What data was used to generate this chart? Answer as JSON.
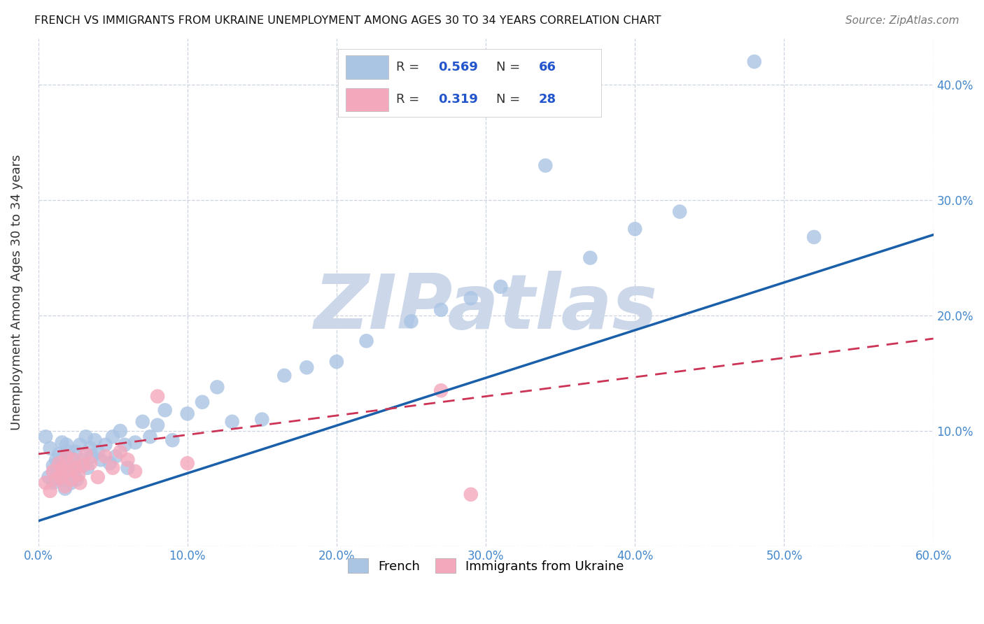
{
  "title": "FRENCH VS IMMIGRANTS FROM UKRAINE UNEMPLOYMENT AMONG AGES 30 TO 34 YEARS CORRELATION CHART",
  "source": "Source: ZipAtlas.com",
  "ylabel": "Unemployment Among Ages 30 to 34 years",
  "xlim": [
    0.0,
    0.6
  ],
  "ylim": [
    0.0,
    0.44
  ],
  "xticks": [
    0.0,
    0.1,
    0.2,
    0.3,
    0.4,
    0.5,
    0.6
  ],
  "yticks": [
    0.0,
    0.1,
    0.2,
    0.3,
    0.4
  ],
  "french_R": 0.569,
  "french_N": 66,
  "ukraine_R": 0.319,
  "ukraine_N": 28,
  "french_color": "#aac4e4",
  "ukraine_color": "#f4a8bc",
  "french_line_color": "#1a5faa",
  "ukraine_line_color": "#cc3355",
  "tick_color": "#4488cc",
  "watermark": "ZIPatlas",
  "watermark_color": "#ccd8ea",
  "french_x": [
    0.005,
    0.007,
    0.008,
    0.01,
    0.01,
    0.012,
    0.013,
    0.014,
    0.015,
    0.015,
    0.016,
    0.017,
    0.018,
    0.018,
    0.019,
    0.02,
    0.02,
    0.021,
    0.022,
    0.022,
    0.023,
    0.024,
    0.025,
    0.026,
    0.027,
    0.028,
    0.03,
    0.032,
    0.033,
    0.035,
    0.036,
    0.038,
    0.04,
    0.042,
    0.045,
    0.048,
    0.05,
    0.052,
    0.055,
    0.058,
    0.06,
    0.065,
    0.07,
    0.075,
    0.08,
    0.085,
    0.09,
    0.1,
    0.11,
    0.12,
    0.13,
    0.15,
    0.165,
    0.18,
    0.2,
    0.22,
    0.25,
    0.27,
    0.29,
    0.31,
    0.34,
    0.37,
    0.4,
    0.43,
    0.48,
    0.52
  ],
  "french_y": [
    0.095,
    0.06,
    0.085,
    0.07,
    0.055,
    0.075,
    0.068,
    0.08,
    0.058,
    0.072,
    0.09,
    0.065,
    0.078,
    0.05,
    0.088,
    0.062,
    0.082,
    0.073,
    0.068,
    0.055,
    0.076,
    0.065,
    0.082,
    0.058,
    0.07,
    0.088,
    0.075,
    0.095,
    0.068,
    0.085,
    0.078,
    0.092,
    0.082,
    0.075,
    0.088,
    0.072,
    0.095,
    0.078,
    0.1,
    0.088,
    0.068,
    0.09,
    0.108,
    0.095,
    0.105,
    0.118,
    0.092,
    0.115,
    0.125,
    0.138,
    0.108,
    0.11,
    0.148,
    0.155,
    0.16,
    0.178,
    0.195,
    0.205,
    0.215,
    0.225,
    0.33,
    0.25,
    0.275,
    0.29,
    0.42,
    0.268
  ],
  "ukraine_x": [
    0.005,
    0.008,
    0.01,
    0.012,
    0.014,
    0.015,
    0.016,
    0.018,
    0.019,
    0.02,
    0.022,
    0.024,
    0.025,
    0.027,
    0.028,
    0.03,
    0.032,
    0.035,
    0.04,
    0.045,
    0.05,
    0.055,
    0.06,
    0.065,
    0.08,
    0.1,
    0.27,
    0.29
  ],
  "ukraine_y": [
    0.055,
    0.048,
    0.065,
    0.058,
    0.072,
    0.06,
    0.068,
    0.052,
    0.078,
    0.065,
    0.058,
    0.075,
    0.068,
    0.062,
    0.055,
    0.07,
    0.08,
    0.072,
    0.06,
    0.078,
    0.068,
    0.082,
    0.075,
    0.065,
    0.13,
    0.072,
    0.135,
    0.045
  ],
  "french_line_x0": 0.0,
  "french_line_y0": 0.022,
  "french_line_x1": 0.6,
  "french_line_y1": 0.27,
  "ukraine_line_x0": 0.0,
  "ukraine_line_y0": 0.08,
  "ukraine_line_x1": 0.6,
  "ukraine_line_y1": 0.18
}
